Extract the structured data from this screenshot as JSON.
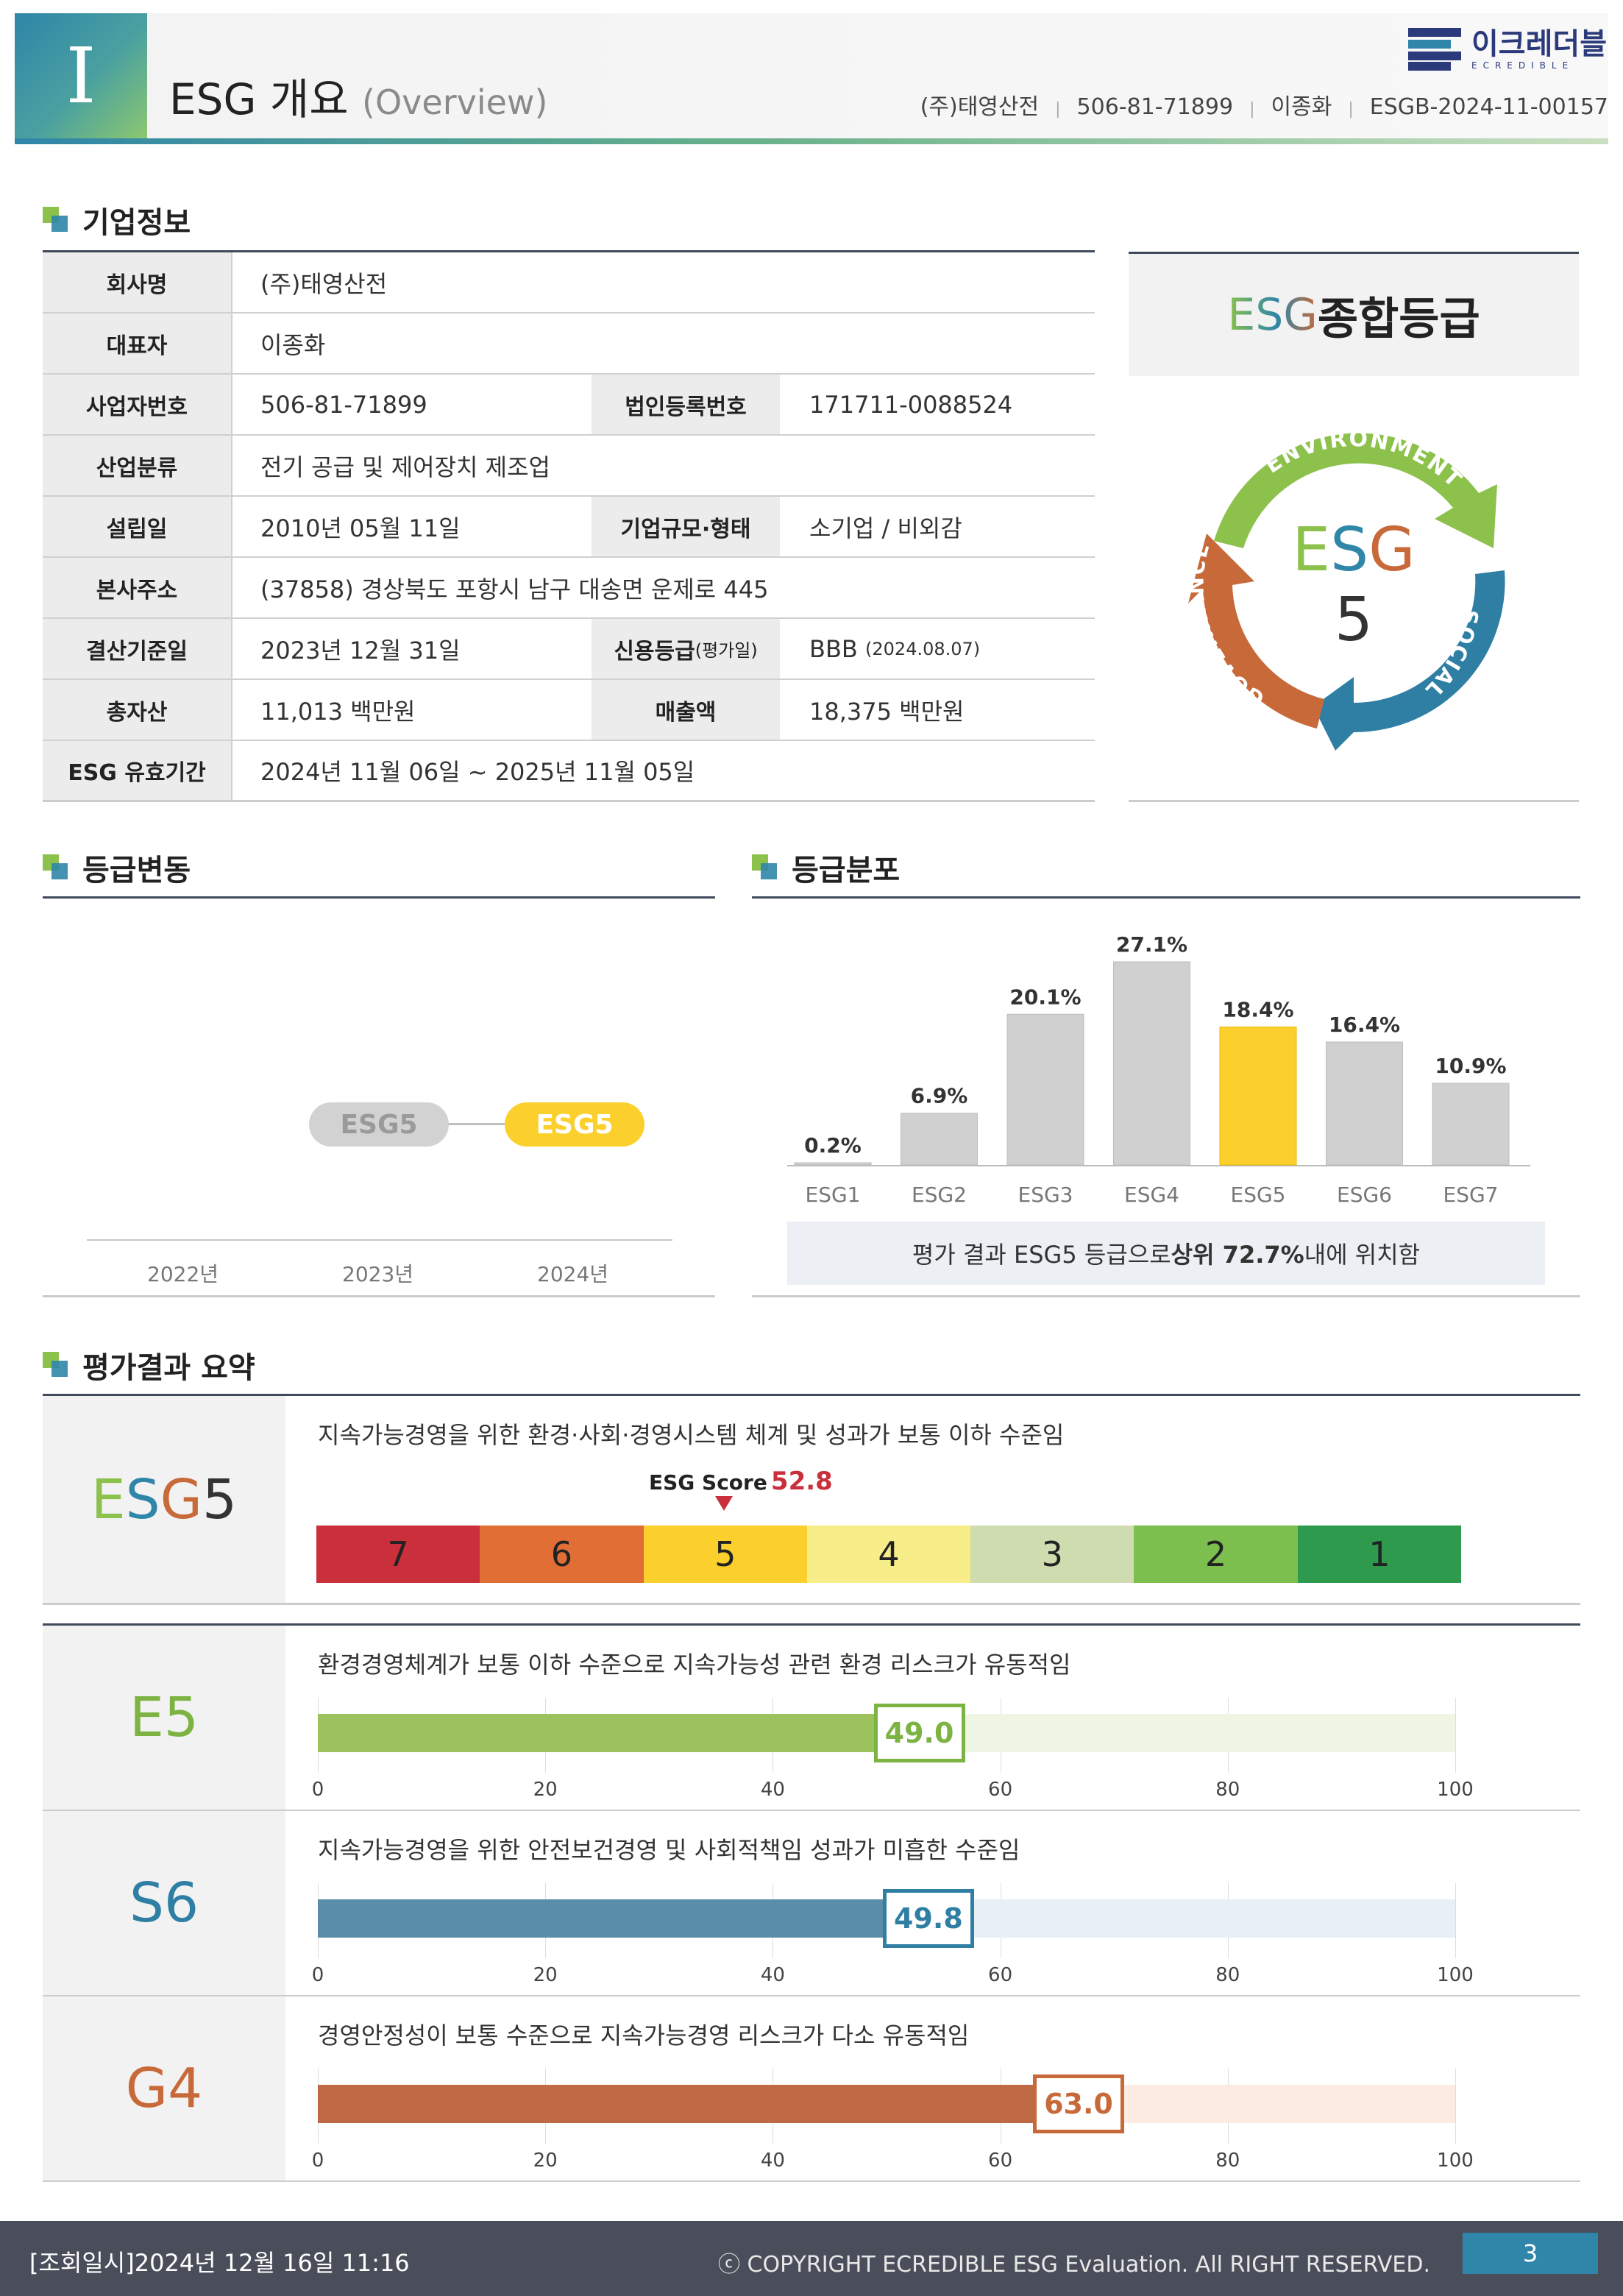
{
  "header": {
    "section_num": "I",
    "title": "ESG 개요",
    "title_sub": "(Overview)",
    "company": "(주)태영산전",
    "biz_no": "506-81-71899",
    "ceo": "이종화",
    "report_no": "ESGB-2024-11-00157",
    "logo_ko": "이크레더블",
    "logo_en": "ECREDIBLE"
  },
  "company_section": {
    "title": "기업정보",
    "rows": {
      "name_label": "회사명",
      "name": "(주)태영산전",
      "ceo_label": "대표자",
      "ceo": "이종화",
      "biz_label": "사업자번호",
      "biz": "506-81-71899",
      "corp_label": "법인등록번호",
      "corp": "171711-0088524",
      "industry_label": "산업분류",
      "industry": "전기 공급 및 제어장치 제조업",
      "founded_label": "설립일",
      "founded": "2010년 05월 11일",
      "scale_label": "기업규모·형태",
      "scale": "소기업 / 비외감",
      "address_label": "본사주소",
      "address": "(37858) 경상북도 포항시 남구 대송면 운제로 445",
      "settle_label": "결산기준일",
      "settle": "2023년 12월 31일",
      "credit_label": "신용등급",
      "credit_label_sub": "(평가일)",
      "credit": "BBB",
      "credit_date": "(2024.08.07)",
      "assets_label": "총자산",
      "assets": "11,013 백만원",
      "sales_label": "매출액",
      "sales": "18,375 백만원",
      "valid_label": "ESG 유효기간",
      "valid": "2024년 11월 06일 ~ 2025년 11월 05일"
    }
  },
  "grade_box": {
    "title_esg": "ESG",
    "title_rest": " 종합등급",
    "cycle_center": "ESG",
    "cycle_grade": "5",
    "env": "ENVIRONMENT",
    "soc": "SOCIAL",
    "gov": "GOVERNANCE",
    "colors": {
      "env": "#8cc14c",
      "soc": "#2f7fa5",
      "gov": "#c8693a"
    }
  },
  "history": {
    "title": "등급변동",
    "years": [
      "2022년",
      "2023년",
      "2024년"
    ],
    "grades": [
      "",
      "ESG5",
      "ESG5"
    ]
  },
  "distribution": {
    "title": "등급분포",
    "note_pre": "평가 결과 ESG5 등급으로 ",
    "note_bold": "상위 72.7%",
    "note_post": " 내에 위치함"
  },
  "chart_data": {
    "type": "bar",
    "categories": [
      "ESG1",
      "ESG2",
      "ESG3",
      "ESG4",
      "ESG5",
      "ESG6",
      "ESG7"
    ],
    "values": [
      0.2,
      6.9,
      20.1,
      27.1,
      18.4,
      16.4,
      10.9
    ],
    "labels": [
      "0.2%",
      "6.9%",
      "20.1%",
      "27.1%",
      "18.4%",
      "16.4%",
      "10.9%"
    ],
    "highlight": "ESG5",
    "colors": {
      "default": "#d0d0d0",
      "highlight": "#fcd02c"
    }
  },
  "summary": {
    "title": "평가결과 요약",
    "overall": {
      "grade": "ESG5",
      "grade_letters": [
        "E",
        "S",
        "G",
        "5"
      ],
      "desc": "지속가능경영을 위한 환경·사회·경영시스템 체계 및 성과가 보통 이하 수준임",
      "score_label": "ESG Score",
      "score": "52.8",
      "scale": [
        "7",
        "6",
        "5",
        "4",
        "3",
        "2",
        "1"
      ],
      "scale_colors": [
        "#c9303b",
        "#e06e35",
        "#fcd02c",
        "#f7ee8a",
        "#cfdcb0",
        "#7cbf4e",
        "#2e9a4d"
      ]
    },
    "axis_ticks": [
      "0",
      "20",
      "40",
      "60",
      "80",
      "100"
    ],
    "items": [
      {
        "grade": "E5",
        "score": 49.0,
        "score_label": "49.0",
        "desc": "환경경영체계가 보통 이하 수준으로 지속가능성 관련 환경 리스크가 유동적임",
        "color": "#9bc25c",
        "bg": "#eef5e4",
        "text_color": "#7cb342"
      },
      {
        "grade": "S6",
        "score": 49.8,
        "score_label": "49.8",
        "desc": "지속가능경영을 위한 안전보건경영 및 사회적책임 성과가 미흡한 수준임",
        "color": "#5a8ea8",
        "bg": "#e8f0f6",
        "text_color": "#2f7fa5"
      },
      {
        "grade": "G4",
        "score": 63.0,
        "score_label": "63.0",
        "desc": "경영안정성이 보통 수준으로 지속가능경영 리스크가 다소 유동적임",
        "color": "#c06a45",
        "bg": "#fcebe2",
        "text_color": "#c8693a"
      }
    ]
  },
  "footer": {
    "timestamp": "[조회일시]2024년 12월 16일 11:16",
    "copyright": "ⓒ COPYRIGHT ECREDIBLE ESG Evaluation. All RIGHT RESERVED.",
    "page": "3"
  }
}
